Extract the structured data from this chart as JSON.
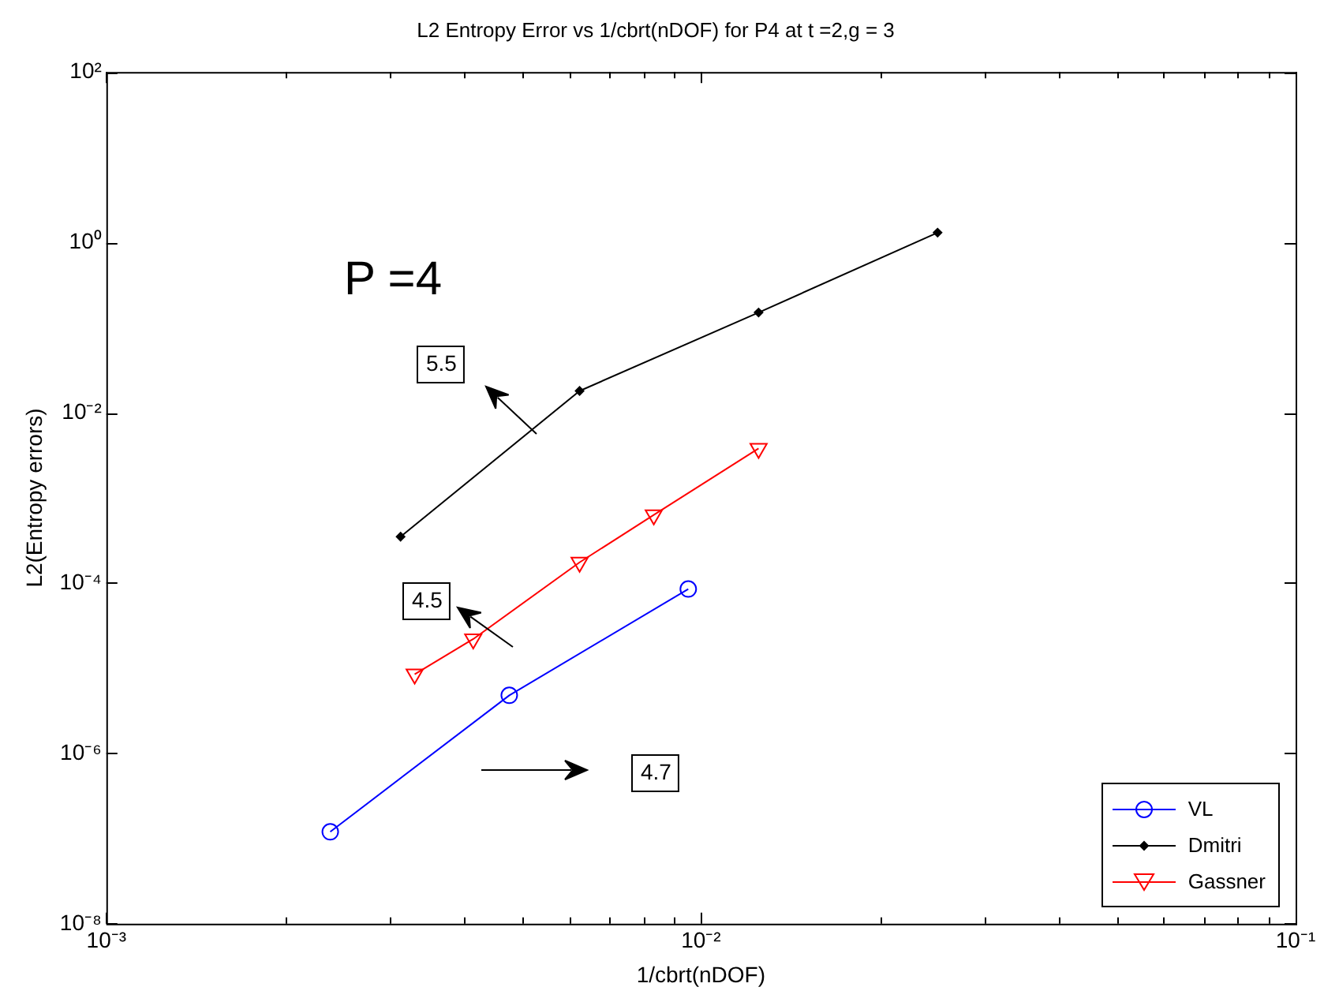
{
  "chart_data": {
    "type": "line",
    "title": "L2 Entropy Error vs 1/cbrt(nDOF) for P4 at t =2,g = 3",
    "xlabel": "1/cbrt(nDOF)",
    "ylabel": "L2(Entropy errors)",
    "log": "xy",
    "xlim": [
      0.001,
      0.1
    ],
    "ylim": [
      1e-08,
      100
    ],
    "xticks": [
      {
        "value": 0.001,
        "label": "10⁻³"
      },
      {
        "value": 0.002,
        "label": null
      },
      {
        "value": 0.003,
        "label": null
      },
      {
        "value": 0.004,
        "label": null
      },
      {
        "value": 0.005,
        "label": null
      },
      {
        "value": 0.006,
        "label": null
      },
      {
        "value": 0.007,
        "label": null
      },
      {
        "value": 0.008,
        "label": null
      },
      {
        "value": 0.009,
        "label": null
      },
      {
        "value": 0.01,
        "label": "10⁻²"
      },
      {
        "value": 0.02,
        "label": null
      },
      {
        "value": 0.03,
        "label": null
      },
      {
        "value": 0.04,
        "label": null
      },
      {
        "value": 0.05,
        "label": null
      },
      {
        "value": 0.06,
        "label": null
      },
      {
        "value": 0.07,
        "label": null
      },
      {
        "value": 0.08,
        "label": null
      },
      {
        "value": 0.09,
        "label": null
      },
      {
        "value": 0.1,
        "label": "10⁻¹"
      }
    ],
    "yticks": [
      {
        "value": 1e-08,
        "label": "10⁻⁸"
      },
      {
        "value": 1e-06,
        "label": "10⁻⁶"
      },
      {
        "value": 0.0001,
        "label": "10⁻⁴"
      },
      {
        "value": 0.01,
        "label": "10⁻²"
      },
      {
        "value": 1,
        "label": "10⁰"
      },
      {
        "value": 100,
        "label": "10²"
      }
    ],
    "grid": false,
    "legend": "bottom right",
    "line_style": "solid",
    "series": [
      {
        "name": "VL",
        "color": "#0000ff",
        "marker": "circle",
        "x": [
          0.00238,
          0.00476,
          0.00952
        ],
        "values": [
          1.2e-07,
          4.8e-06,
          8.5e-05
        ]
      },
      {
        "name": "Dmitri",
        "color": "#000000",
        "marker": "diamond",
        "x": [
          0.003125,
          0.00625,
          0.0125,
          0.025
        ],
        "values": [
          0.00035,
          0.018,
          0.15,
          1.3
        ]
      },
      {
        "name": "Gassner",
        "color": "#ff0000",
        "marker": "triangle",
        "x": [
          0.0033,
          0.00414,
          0.00625,
          0.00833,
          0.0125
        ],
        "values": [
          8.5e-06,
          2.2e-05,
          0.000175,
          0.00063,
          0.0038
        ]
      }
    ],
    "annotations": [
      "P =4",
      "5.5",
      "4.5",
      "4.7"
    ]
  }
}
